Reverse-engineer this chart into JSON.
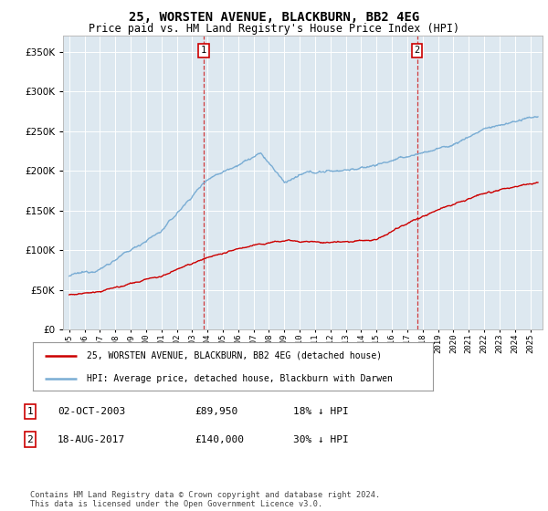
{
  "title": "25, WORSTEN AVENUE, BLACKBURN, BB2 4EG",
  "subtitle": "Price paid vs. HM Land Registry's House Price Index (HPI)",
  "ytick_values": [
    0,
    50000,
    100000,
    150000,
    200000,
    250000,
    300000,
    350000
  ],
  "ylim": [
    0,
    370000
  ],
  "xlim_start": 1994.6,
  "xlim_end": 2025.8,
  "hpi_color": "#7aadd4",
  "price_color": "#cc0000",
  "marker1_x": 2003.75,
  "marker1_y": 89950,
  "marker2_x": 2017.63,
  "marker2_y": 140000,
  "legend_price_label": "25, WORSTEN AVENUE, BLACKBURN, BB2 4EG (detached house)",
  "legend_hpi_label": "HPI: Average price, detached house, Blackburn with Darwen",
  "table_rows": [
    {
      "num": "1",
      "date": "02-OCT-2003",
      "price": "£89,950",
      "hpi": "18% ↓ HPI"
    },
    {
      "num": "2",
      "date": "18-AUG-2017",
      "price": "£140,000",
      "hpi": "30% ↓ HPI"
    }
  ],
  "footnote": "Contains HM Land Registry data © Crown copyright and database right 2024.\nThis data is licensed under the Open Government Licence v3.0.",
  "background_color": "#ffffff",
  "plot_bg_color": "#dde8f0"
}
